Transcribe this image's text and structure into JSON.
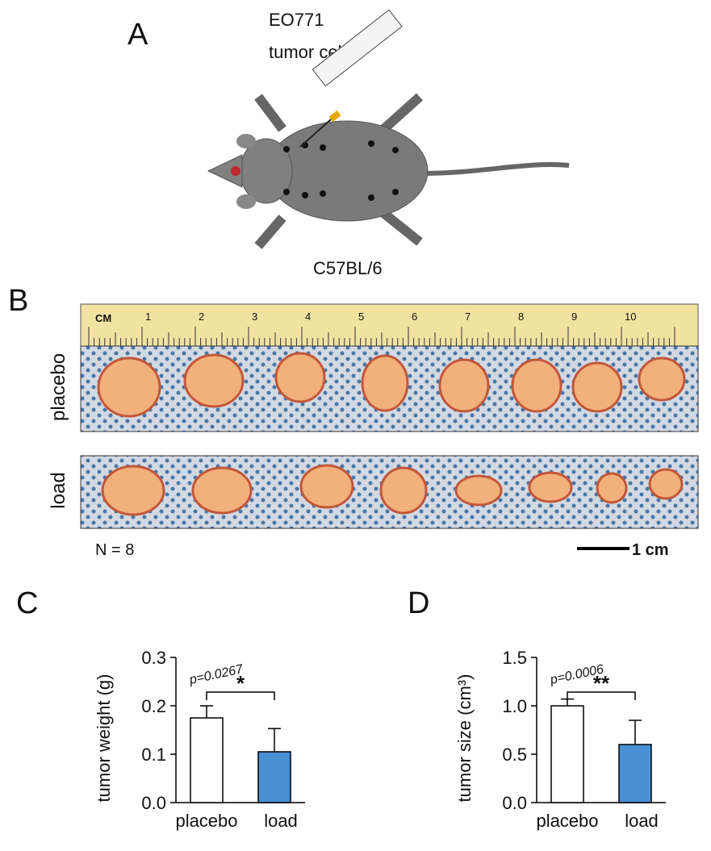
{
  "panel_a": {
    "letter": "A",
    "injection_label_1": "EO771",
    "injection_label_2": "tumor cells",
    "strain": "C57BL/6"
  },
  "panel_b": {
    "letter": "B",
    "ruler_unit": "CM",
    "ruler_labels": [
      "1",
      "2",
      "3",
      "4",
      "5",
      "6",
      "7",
      "8",
      "9",
      "10"
    ],
    "group_1": "placebo",
    "group_2": "load",
    "n_label": "N = 8",
    "scale_label": "1 cm"
  },
  "chart_data": [
    {
      "type": "bar",
      "panel": "C",
      "ylabel": "tumor weight  (g)",
      "categories": [
        "placebo",
        "load"
      ],
      "values": [
        0.175,
        0.105
      ],
      "errors": [
        0.025,
        0.048
      ],
      "colors": [
        "#ffffff",
        "#4a8fd4"
      ],
      "ylim": [
        0,
        0.3
      ],
      "yticks": [
        {
          "value": 0,
          "label": "0.0"
        },
        0.1,
        0.2,
        0.3
      ],
      "p_label": "p=0.0267",
      "significance": "*"
    },
    {
      "type": "bar",
      "panel": "D",
      "ylabel": "tumor size (cm³)",
      "categories": [
        "placebo",
        "load"
      ],
      "values": [
        1.0,
        0.6
      ],
      "errors": [
        0.07,
        0.25
      ],
      "colors": [
        "#ffffff",
        "#4a8fd4"
      ],
      "ylim": [
        0,
        1.5
      ],
      "yticks": [
        {
          "value": 0,
          "label": "0.0"
        },
        0.5,
        {
          "value": 1,
          "label": "1.0"
        },
        1.5
      ],
      "p_label": "p=0.0006",
      "significance": "**"
    }
  ]
}
